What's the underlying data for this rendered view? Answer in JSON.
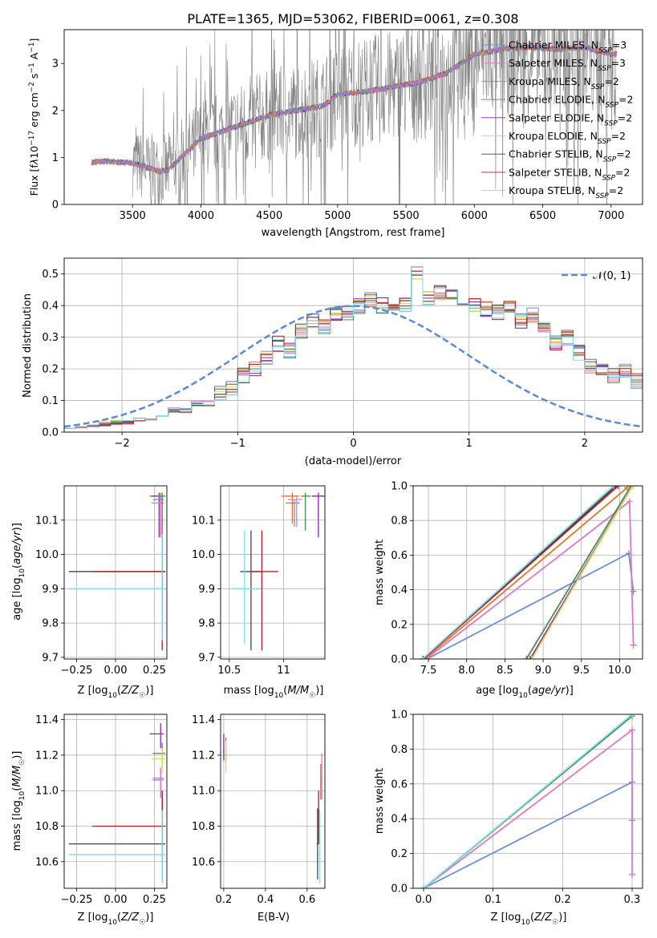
{
  "figure_title": "PLATE=1365, MJD=53062, FIBERID=0061, z=0.308",
  "colors": {
    "Chabrier MILES": "#6a8fd9",
    "Salpeter MILES": "#e377c2",
    "Kroupa MILES": "#e8742a",
    "Chabrier ELODIE": "#4a8a5a",
    "Salpeter ELODIE": "#8e24aa",
    "Kroupa ELODIE": "#d4e157",
    "Chabrier STELIB": "#444444",
    "Salpeter STELIB": "#b71c1c",
    "Kroupa STELIB": "#80deea",
    "data": "#808080",
    "normal_curve": "#5b8bd8"
  },
  "chart_data": [
    {
      "id": "spectrum",
      "type": "line",
      "xlabel": "wavelength [Angstrom, rest frame]",
      "ylabel": "Flux [f_λ10^-17 erg cm^-2 s^-1 A^-1]",
      "xlim": [
        3000,
        7230
      ],
      "ylim": [
        0,
        3.72
      ],
      "xticks": [
        3500,
        4000,
        4500,
        5000,
        5500,
        6000,
        6500,
        7000
      ],
      "yticks": [
        0,
        1,
        2,
        3
      ],
      "grid": false,
      "legend_position": "top-right",
      "model_trend": {
        "x": [
          3200,
          3300,
          3500,
          3700,
          3750,
          3800,
          4000,
          4300,
          4500,
          4700,
          4900,
          5000,
          5200,
          5400,
          5600,
          5800,
          6000,
          6200,
          6400,
          6600,
          6800,
          7000
        ],
        "y": [
          0.9,
          0.92,
          0.88,
          0.7,
          0.72,
          0.85,
          1.4,
          1.7,
          1.9,
          2.0,
          2.1,
          2.35,
          2.4,
          2.5,
          2.6,
          2.8,
          3.2,
          3.3,
          3.35,
          3.3,
          3.35,
          3.2
        ]
      },
      "series": [
        {
          "label": "Chabrier MILES, N_SSP=3"
        },
        {
          "label": "Salpeter MILES, N_SSP=3"
        },
        {
          "label": "Kroupa MILES, N_SSP=2"
        },
        {
          "label": "Chabrier ELODIE, N_SSP=2"
        },
        {
          "label": "Salpeter ELODIE, N_SSP=2"
        },
        {
          "label": "Kroupa ELODIE, N_SSP=2"
        },
        {
          "label": "Chabrier STELIB, N_SSP=2"
        },
        {
          "label": "Salpeter STELIB, N_SSP=2"
        },
        {
          "label": "Kroupa STELIB, N_SSP=2"
        }
      ]
    },
    {
      "id": "residuals",
      "type": "histogram",
      "xlabel": "(data-model)/error",
      "ylabel": "Normed distribution",
      "xlim": [
        -2.5,
        2.5
      ],
      "ylim": [
        0,
        0.55
      ],
      "xticks": [
        -2,
        -1,
        0,
        1,
        2
      ],
      "yticks": [
        0.0,
        0.1,
        0.2,
        0.3,
        0.4,
        0.5
      ],
      "grid": true,
      "legend": {
        "label": "𝒩(0, 1)",
        "position": "top-right"
      },
      "bin_width": 0.1,
      "hist_x_start": -2.5,
      "hist_values": [
        0.02,
        0.02,
        0.02,
        0.025,
        0.03,
        0.03,
        0.04,
        0.04,
        0.05,
        0.07,
        0.07,
        0.09,
        0.09,
        0.12,
        0.14,
        0.18,
        0.2,
        0.24,
        0.28,
        0.26,
        0.32,
        0.35,
        0.33,
        0.37,
        0.38,
        0.4,
        0.42,
        0.4,
        0.41,
        0.4,
        0.5,
        0.42,
        0.44,
        0.43,
        0.41,
        0.4,
        0.39,
        0.38,
        0.4,
        0.35,
        0.37,
        0.33,
        0.28,
        0.3,
        0.25,
        0.21,
        0.2,
        0.18,
        0.19,
        0.16,
        0.13,
        0.1,
        0.09,
        0.08,
        0.07,
        0.06,
        0.05,
        0.05,
        0.04,
        0.04,
        0.03,
        0.03,
        0.03,
        0.02,
        0.02,
        0.02,
        0.02,
        0.02,
        0.03,
        0.03
      ]
    },
    {
      "id": "age_vs_Z",
      "type": "errorbar",
      "xlabel": "Z [log10(Z/Z☉)]",
      "ylabel": "age [log10(age/yr)]",
      "xlim": [
        -0.33,
        0.33
      ],
      "ylim": [
        9.695,
        10.2
      ],
      "xticks": [
        -0.25,
        0.0,
        0.25
      ],
      "xticklabels": [
        "−0.25",
        "0.00",
        "0.25"
      ],
      "yticks": [
        9.7,
        9.8,
        9.9,
        10.0,
        10.1
      ],
      "grid": true,
      "points": [
        {
          "s": "Chabrier STELIB",
          "x": 0.3,
          "xerr": [
            0.6,
            0.02
          ],
          "y": 9.95,
          "yerr": [
            0.1,
            0.15
          ]
        },
        {
          "s": "Salpeter STELIB",
          "x": 0.3,
          "xerr": [
            0.45,
            0.02
          ],
          "y": 9.95,
          "yerr": [
            0.23,
            0.15
          ]
        },
        {
          "s": "Kroupa STELIB",
          "x": 0.3,
          "xerr": [
            0.6,
            0.02
          ],
          "y": 9.9,
          "yerr": [
            0.15,
            0.19
          ]
        },
        {
          "s": "Kroupa MILES",
          "x": 0.29,
          "xerr": [
            0.07,
            0.02
          ],
          "y": 10.17,
          "yerr": [
            0.12,
            0.01
          ]
        },
        {
          "s": "Salpeter ELODIE",
          "x": 0.28,
          "xerr": [
            0.05,
            0.02
          ],
          "y": 10.17,
          "yerr": [
            0.12,
            0.01
          ]
        },
        {
          "s": "Chabrier MILES",
          "x": 0.29,
          "xerr": [
            0.05,
            0.02
          ],
          "y": 10.16,
          "yerr": [
            0.1,
            0.01
          ]
        },
        {
          "s": "Salpeter MILES",
          "x": 0.29,
          "xerr": [
            0.06,
            0.02
          ],
          "y": 10.15,
          "yerr": [
            0.1,
            0.01
          ]
        },
        {
          "s": "Kroupa ELODIE",
          "x": 0.3,
          "xerr": [
            0.03,
            0.02
          ],
          "y": 10.17,
          "yerr": [
            0.11,
            0.01
          ]
        },
        {
          "s": "Chabrier ELODIE",
          "x": 0.3,
          "xerr": [
            0.03,
            0.02
          ],
          "y": 10.17,
          "yerr": [
            0.11,
            0.01
          ]
        }
      ]
    },
    {
      "id": "age_vs_mass",
      "type": "errorbar",
      "xlabel": "mass [log10(M/M☉)]",
      "ylabel": "",
      "xlim": [
        10.42,
        11.38
      ],
      "ylim": [
        9.695,
        10.2
      ],
      "xticks": [
        10.5,
        11.0
      ],
      "yticks": [
        9.7,
        9.8,
        9.9,
        10.0,
        10.1
      ],
      "grid": true,
      "points": [
        {
          "s": "Chabrier STELIB",
          "x": 10.7,
          "xerr": [
            0.1,
            0.1
          ],
          "y": 9.95,
          "yerr": [
            0.23,
            0.12
          ]
        },
        {
          "s": "Salpeter STELIB",
          "x": 10.8,
          "xerr": [
            0.1,
            0.15
          ],
          "y": 9.95,
          "yerr": [
            0.23,
            0.12
          ]
        },
        {
          "s": "Kroupa STELIB",
          "x": 10.64,
          "xerr": [
            0.1,
            0.15
          ],
          "y": 9.9,
          "yerr": [
            0.16,
            0.17
          ]
        },
        {
          "s": "Salpeter ELODIE",
          "x": 11.32,
          "xerr": [
            0.06,
            0.06
          ],
          "y": 10.17,
          "yerr": [
            0.12,
            0.01
          ]
        },
        {
          "s": "Kroupa MILES",
          "x": 11.08,
          "xerr": [
            0.1,
            0.06
          ],
          "y": 10.17,
          "yerr": [
            0.08,
            0.01
          ]
        },
        {
          "s": "Kroupa ELODIE",
          "x": 11.2,
          "xerr": [
            0.03,
            0.05
          ],
          "y": 10.17,
          "yerr": [
            0.1,
            0.01
          ]
        },
        {
          "s": "Chabrier ELODIE",
          "x": 11.2,
          "xerr": [
            0.04,
            0.05
          ],
          "y": 10.17,
          "yerr": [
            0.1,
            0.01
          ]
        },
        {
          "s": "Chabrier MILES",
          "x": 11.1,
          "xerr": [
            0.08,
            0.05
          ],
          "y": 10.15,
          "yerr": [
            0.07,
            0.01
          ]
        },
        {
          "s": "Salpeter MILES",
          "x": 11.12,
          "xerr": [
            0.08,
            0.05
          ],
          "y": 10.16,
          "yerr": [
            0.08,
            0.01
          ]
        }
      ]
    },
    {
      "id": "massweight_vs_age",
      "type": "line",
      "xlabel": "age [log10(age/yr)]",
      "ylabel": "mass weight",
      "xlim": [
        7.3,
        10.3
      ],
      "ylim": [
        0,
        1
      ],
      "xticks": [
        7.5,
        8.0,
        8.5,
        9.0,
        9.5,
        10.0
      ],
      "yticks": [
        0.0,
        0.2,
        0.4,
        0.6,
        0.8,
        1.0
      ],
      "grid": true,
      "series": [
        {
          "s": "Chabrier MILES",
          "x": [
            7.48,
            10.12,
            10.18
          ],
          "y": [
            0,
            0.61,
            0.39
          ]
        },
        {
          "s": "Salpeter MILES",
          "x": [
            7.47,
            10.13,
            10.18,
            10.18
          ],
          "y": [
            0,
            0.91,
            0.08,
            0.08
          ]
        },
        {
          "s": "Kroupa MILES",
          "x": [
            7.45,
            10.1
          ],
          "y": [
            0,
            0.99
          ]
        },
        {
          "s": "Chabrier ELODIE",
          "x": [
            8.78,
            10.15
          ],
          "y": [
            0,
            1.0
          ]
        },
        {
          "s": "Salpeter ELODIE",
          "x": [
            8.83,
            10.17
          ],
          "y": [
            0,
            1.0
          ]
        },
        {
          "s": "Kroupa ELODIE",
          "x": [
            8.85,
            10.17
          ],
          "y": [
            0,
            1.0
          ]
        },
        {
          "s": "Chabrier STELIB",
          "x": [
            7.43,
            9.95
          ],
          "y": [
            0,
            1.0
          ]
        },
        {
          "s": "Salpeter STELIB",
          "x": [
            7.43,
            9.98
          ],
          "y": [
            0,
            1.0
          ]
        },
        {
          "s": "Kroupa STELIB",
          "x": [
            7.42,
            9.92
          ],
          "y": [
            0,
            1.0
          ]
        }
      ]
    },
    {
      "id": "mass_vs_Z",
      "type": "errorbar",
      "xlabel": "Z [log10(Z/Z☉)]",
      "ylabel": "mass [log10(M/M☉)]",
      "xlim": [
        -0.33,
        0.33
      ],
      "ylim": [
        10.45,
        11.43
      ],
      "xticks": [
        -0.25,
        0.0,
        0.25
      ],
      "xticklabels": [
        "−0.25",
        "0.00",
        "0.25"
      ],
      "yticks": [
        10.6,
        10.8,
        11.0,
        11.2,
        11.4
      ],
      "grid": true,
      "points": [
        {
          "s": "Chabrier STELIB",
          "x": 0.3,
          "xerr": [
            0.6,
            0.02
          ],
          "y": 10.7,
          "yerr": [
            0.2,
            0.3
          ]
        },
        {
          "s": "Salpeter STELIB",
          "x": 0.3,
          "xerr": [
            0.45,
            0.02
          ],
          "y": 10.8,
          "yerr": [
            0.1,
            0.2
          ]
        },
        {
          "s": "Kroupa STELIB",
          "x": 0.3,
          "xerr": [
            0.6,
            0.02
          ],
          "y": 10.64,
          "yerr": [
            0.16,
            0.25
          ]
        },
        {
          "s": "Salpeter ELODIE",
          "x": 0.29,
          "xerr": [
            0.07,
            0.02
          ],
          "y": 11.32,
          "yerr": [
            0.08,
            0.06
          ]
        },
        {
          "s": "Chabrier ELODIE",
          "x": 0.3,
          "xerr": [
            0.06,
            0.02
          ],
          "y": 11.21,
          "yerr": [
            0.08,
            0.06
          ]
        },
        {
          "s": "Kroupa ELODIE",
          "x": 0.3,
          "xerr": [
            0.07,
            0.02
          ],
          "y": 11.18,
          "yerr": [
            0.08,
            0.06
          ]
        },
        {
          "s": "Kroupa MILES",
          "x": 0.29,
          "xerr": [
            0.05,
            0.02
          ],
          "y": 11.07,
          "yerr": [
            0.1,
            0.06
          ]
        },
        {
          "s": "Chabrier MILES",
          "x": 0.29,
          "xerr": [
            0.05,
            0.02
          ],
          "y": 11.06,
          "yerr": [
            0.1,
            0.06
          ]
        },
        {
          "s": "Salpeter MILES",
          "x": 0.29,
          "xerr": [
            0.05,
            0.02
          ],
          "y": 11.07,
          "yerr": [
            0.1,
            0.06
          ]
        }
      ]
    },
    {
      "id": "mass_vs_EBV",
      "type": "errorbar",
      "xlabel": "E(B-V)",
      "ylabel": "",
      "xlim": [
        0.185,
        0.685
      ],
      "ylim": [
        10.45,
        11.43
      ],
      "xticks": [
        0.2,
        0.4,
        0.6
      ],
      "yticks": [
        10.6,
        10.8,
        11.0,
        11.2,
        11.4
      ],
      "grid": true,
      "points": [
        {
          "s": "Chabrier ELODIE",
          "x": 0.21,
          "xerr": [
            0.005,
            0.005
          ],
          "y": 11.2,
          "yerr": [
            0.04,
            0.1
          ]
        },
        {
          "s": "Kroupa ELODIE",
          "x": 0.21,
          "xerr": [
            0.005,
            0.005
          ],
          "y": 11.18,
          "yerr": [
            0.08,
            0.1
          ]
        },
        {
          "s": "Salpeter ELODIE",
          "x": 0.2,
          "xerr": [
            0.003,
            0.003
          ],
          "y": 11.22,
          "yerr": [
            0.05,
            0.1
          ]
        },
        {
          "s": "Chabrier STELIB",
          "x": 0.65,
          "xerr": [
            0.005,
            0.005
          ],
          "y": 10.7,
          "yerr": [
            0.2,
            0.2
          ]
        },
        {
          "s": "Salpeter STELIB",
          "x": 0.655,
          "xerr": [
            0.005,
            0.005
          ],
          "y": 10.8,
          "yerr": [
            0.1,
            0.2
          ]
        },
        {
          "s": "Kroupa STELIB",
          "x": 0.66,
          "xerr": [
            0.005,
            0.005
          ],
          "y": 10.64,
          "yerr": [
            0.16,
            0.25
          ]
        },
        {
          "s": "Kroupa MILES",
          "x": 0.665,
          "xerr": [
            0.003,
            0.003
          ],
          "y": 11.05,
          "yerr": [
            0.1,
            0.1
          ]
        },
        {
          "s": "Salpeter MILES",
          "x": 0.67,
          "xerr": [
            0.003,
            0.003
          ],
          "y": 11.05,
          "yerr": [
            0.1,
            0.16
          ]
        }
      ]
    },
    {
      "id": "massweight_vs_Z",
      "type": "line",
      "xlabel": "Z [log10(Z/Z☉)]",
      "ylabel": "mass weight",
      "xlim": [
        -0.015,
        0.315
      ],
      "ylim": [
        0,
        1
      ],
      "xticks": [
        0.0,
        0.1,
        0.2,
        0.3
      ],
      "yticks": [
        0.0,
        0.2,
        0.4,
        0.6,
        0.8,
        1.0
      ],
      "grid": true,
      "series": [
        {
          "s": "Chabrier MILES",
          "x": [
            0.0,
            0.3,
            0.3
          ],
          "y": [
            0,
            0.61,
            0.39
          ]
        },
        {
          "s": "Salpeter MILES",
          "x": [
            0.0,
            0.3,
            0.3,
            0.3
          ],
          "y": [
            0,
            0.91,
            0.08,
            0.08
          ]
        },
        {
          "s": "Kroupa ELODIE",
          "x": [
            0.0,
            0.3
          ],
          "y": [
            0,
            1.0
          ]
        },
        {
          "s": "Chabrier ELODIE",
          "x": [
            0.0,
            0.3
          ],
          "y": [
            0,
            0.99
          ]
        },
        {
          "s": "Kroupa STELIB",
          "x": [
            0.0,
            0.3
          ],
          "y": [
            0,
            1.0
          ]
        }
      ]
    }
  ]
}
